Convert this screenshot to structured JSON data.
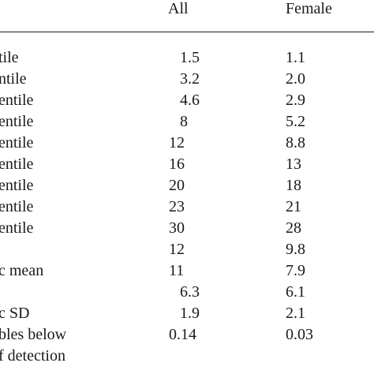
{
  "columns": {
    "all": "All",
    "female": "Female"
  },
  "rows": [
    {
      "label": "tile",
      "all": "1.5",
      "female": "1.1"
    },
    {
      "label": "ntile",
      "all": "3.2",
      "female": "2.0"
    },
    {
      "label": "entile",
      "all": "4.6",
      "female": "2.9"
    },
    {
      "label": "entile",
      "all": "8",
      "female": "5.2"
    },
    {
      "label": "entile",
      "all": "12",
      "female": "8.8"
    },
    {
      "label": "entile",
      "all": "16",
      "female": "13"
    },
    {
      "label": "entile",
      "all": "20",
      "female": "18"
    },
    {
      "label": "entile",
      "all": "23",
      "female": "21"
    },
    {
      "label": "entile",
      "all": "30",
      "female": "28"
    },
    {
      "label": "",
      "all": "12",
      "female": "9.8"
    },
    {
      "label": "c mean",
      "all": "11",
      "female": "7.9"
    },
    {
      "label": "",
      "all": "6.3",
      "female": "6.1"
    },
    {
      "label": "c SD",
      "all": "1.9",
      "female": "2.1"
    },
    {
      "label": "bles below",
      "all": "0.14",
      "female": "0.03"
    },
    {
      "label": "f detection",
      "all": "",
      "female": ""
    }
  ]
}
